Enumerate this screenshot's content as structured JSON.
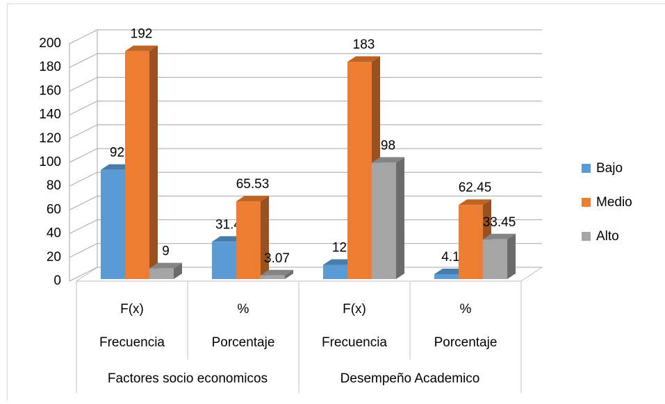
{
  "chart_data": {
    "type": "bar3d",
    "categories": [
      "F(x)",
      "%",
      "F(x)",
      "%"
    ],
    "categories_level2": [
      "Frecuencia",
      "Porcentaje",
      "Frecuencia",
      "Porcentaje"
    ],
    "categories_level3": [
      "Factores socio economicos",
      "Desempeño Academico"
    ],
    "series": [
      {
        "name": "Bajo",
        "color": "#5b9bd5",
        "values": [
          92,
          31.4,
          12,
          4.1
        ]
      },
      {
        "name": "Medio",
        "color": "#ed7d31",
        "values": [
          192,
          65.53,
          183,
          62.45
        ]
      },
      {
        "name": "Alto",
        "color": "#a5a5a5",
        "values": [
          9,
          3.07,
          98,
          33.45
        ]
      }
    ],
    "ylim": [
      0,
      200
    ],
    "yticks": [
      0,
      20,
      40,
      60,
      80,
      100,
      120,
      140,
      160,
      180,
      200
    ],
    "grid": true,
    "legend": "right"
  }
}
